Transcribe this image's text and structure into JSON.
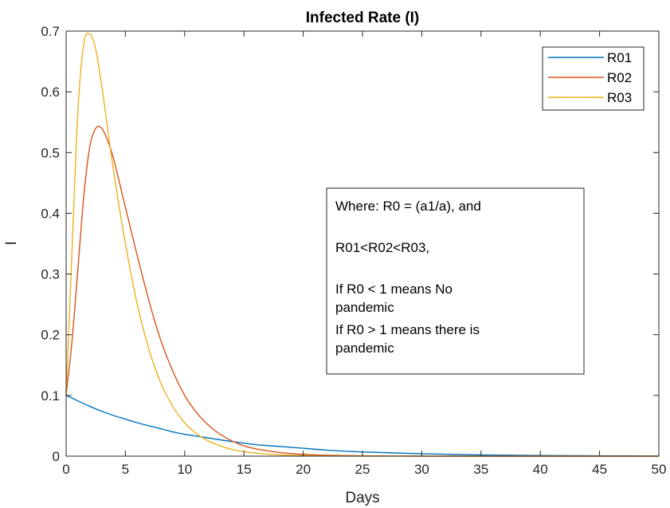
{
  "chart_data": {
    "type": "line",
    "title": "Infected Rate (I)",
    "xlabel": "Days",
    "ylabel": "I",
    "xlim": [
      0,
      50
    ],
    "ylim": [
      0,
      0.7
    ],
    "xticks": [
      0,
      5,
      10,
      15,
      20,
      25,
      30,
      35,
      40,
      45,
      50
    ],
    "yticks": [
      0,
      0.1,
      0.2,
      0.3,
      0.4,
      0.5,
      0.6,
      0.7
    ],
    "grid": false,
    "legend_position": "top-right",
    "series": [
      {
        "name": "R01",
        "color": "#0072BD",
        "x": [
          0,
          1,
          2,
          3,
          4,
          5,
          6,
          7,
          8,
          9,
          10,
          12,
          14,
          16,
          18,
          20,
          22,
          25,
          30,
          35,
          40,
          45,
          50
        ],
        "y": [
          0.1,
          0.091,
          0.082,
          0.074,
          0.067,
          0.061,
          0.055,
          0.05,
          0.045,
          0.04,
          0.036,
          0.03,
          0.024,
          0.019,
          0.016,
          0.013,
          0.01,
          0.007,
          0.004,
          0.002,
          0.001,
          0.0006,
          0.0003
        ]
      },
      {
        "name": "R02",
        "color": "#D95319",
        "x": [
          0,
          0.5,
          1,
          1.5,
          2,
          2.5,
          3,
          3.5,
          4,
          5,
          6,
          7,
          8,
          9,
          10,
          11,
          12,
          13,
          14,
          15,
          16,
          18,
          20,
          22,
          25,
          30,
          35,
          40,
          45,
          50
        ],
        "y": [
          0.1,
          0.19,
          0.31,
          0.43,
          0.51,
          0.54,
          0.54,
          0.52,
          0.49,
          0.41,
          0.33,
          0.255,
          0.19,
          0.14,
          0.1,
          0.072,
          0.051,
          0.036,
          0.025,
          0.017,
          0.012,
          0.006,
          0.003,
          0.0015,
          0.0006,
          0.0001,
          0,
          0,
          0,
          0
        ]
      },
      {
        "name": "R03",
        "color": "#EDB120",
        "x": [
          0,
          0.5,
          1,
          1.5,
          2,
          2.5,
          3,
          3.5,
          4,
          5,
          6,
          7,
          8,
          9,
          10,
          11,
          12,
          13,
          14,
          15,
          16,
          18,
          20,
          22,
          25,
          30,
          35,
          40,
          45,
          50
        ],
        "y": [
          0.1,
          0.34,
          0.57,
          0.68,
          0.695,
          0.67,
          0.61,
          0.54,
          0.47,
          0.35,
          0.25,
          0.175,
          0.12,
          0.082,
          0.055,
          0.037,
          0.025,
          0.017,
          0.011,
          0.0075,
          0.005,
          0.002,
          0.001,
          0.0004,
          0.0001,
          0,
          0,
          0,
          0,
          0
        ]
      }
    ],
    "annotation": {
      "lines": [
        "Where: R0 = (a1/a), and",
        "",
        "R01<R02<R03,",
        "",
        "If R0 < 1 means No",
        "pandemic",
        "If R0 > 1 means there is",
        "pandemic"
      ]
    }
  }
}
